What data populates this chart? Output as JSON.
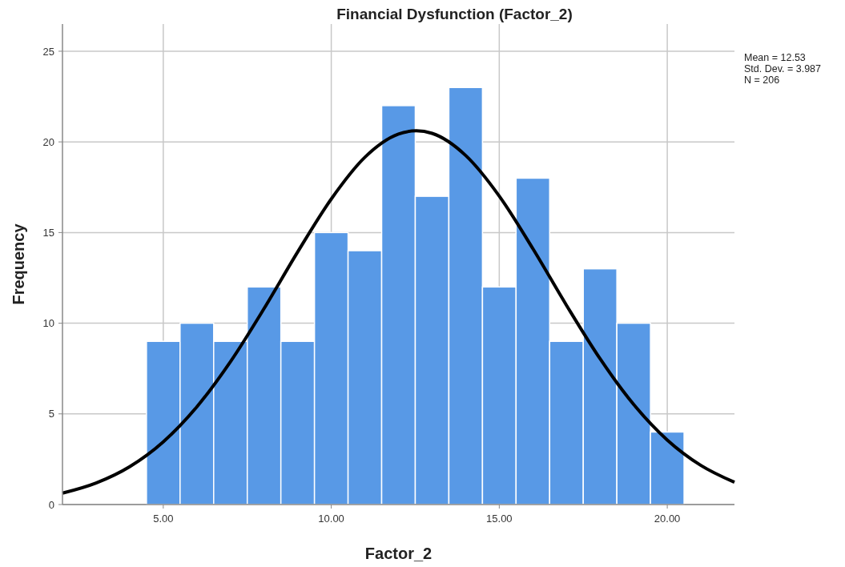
{
  "chart_data": {
    "type": "histogram",
    "title": "Financial Dysfunction (Factor_2)",
    "xlabel": "Factor_2",
    "ylabel": "Frequency",
    "series": [
      {
        "color": "#5899e6",
        "bins": [
          4.5,
          5.5,
          6.5,
          7.5,
          8.5,
          9.5,
          10.5,
          11.5,
          12.5,
          13.5,
          14.5,
          15.5,
          16.5,
          17.5,
          18.5,
          19.5,
          20.5
        ],
        "values": [
          9,
          10,
          9,
          12,
          9,
          15,
          14,
          22,
          17,
          23,
          12,
          18,
          9,
          13,
          10,
          4
        ]
      },
      {
        "type": "line",
        "color": "#000000",
        "x": [
          2,
          3,
          4,
          5,
          6,
          7,
          8,
          9,
          10,
          11,
          12,
          12.53,
          13,
          14,
          15,
          16,
          17,
          18,
          19,
          20,
          21,
          22
        ],
        "values": [
          0.63,
          1.19,
          2.09,
          3.46,
          5.39,
          7.88,
          10.81,
          13.93,
          16.85,
          19.15,
          20.43,
          20.61,
          20.47,
          19.25,
          17.01,
          14.11,
          10.99,
          8.04,
          5.52,
          3.56,
          2.16,
          1.23
        ]
      }
    ],
    "xlim": [
      2,
      22
    ],
    "xticks": [
      {
        "value": 5,
        "label": "5.00"
      },
      {
        "value": 10,
        "label": "10.00"
      },
      {
        "value": 15,
        "label": "15.00"
      },
      {
        "value": 20,
        "label": "20.00"
      }
    ],
    "ylim": [
      0,
      26.5
    ],
    "yticks": [
      0,
      5,
      10,
      15,
      20,
      25
    ],
    "grid": true,
    "line_style": "solid",
    "marker": "none",
    "annotations": [
      "Mean = 12.53",
      "Std. Dev. = 3.987",
      "N = 206"
    ]
  }
}
